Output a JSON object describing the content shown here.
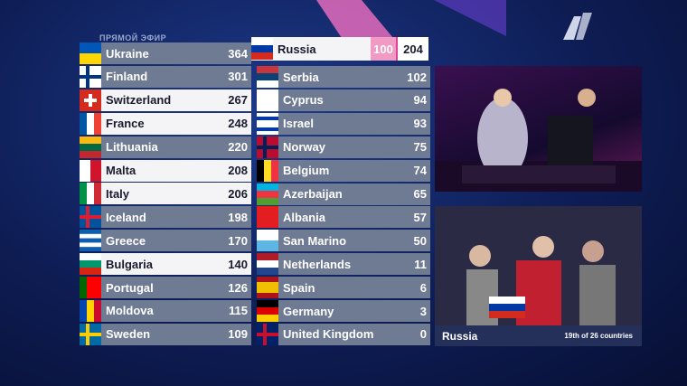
{
  "header": {
    "live_label": "ПРЯМОЙ ЭФИР"
  },
  "voter": {
    "country": "Russia",
    "points_given": 100,
    "total": 204
  },
  "scoreboard": {
    "left": [
      {
        "country": "Ukraine",
        "points": 364,
        "highlighted": false
      },
      {
        "country": "Finland",
        "points": 301,
        "highlighted": false
      },
      {
        "country": "Switzerland",
        "points": 267,
        "highlighted": true
      },
      {
        "country": "France",
        "points": 248,
        "highlighted": true
      },
      {
        "country": "Lithuania",
        "points": 220,
        "highlighted": false
      },
      {
        "country": "Malta",
        "points": 208,
        "highlighted": true
      },
      {
        "country": "Italy",
        "points": 206,
        "highlighted": true
      },
      {
        "country": "Iceland",
        "points": 198,
        "highlighted": false
      },
      {
        "country": "Greece",
        "points": 170,
        "highlighted": false
      },
      {
        "country": "Bulgaria",
        "points": 140,
        "highlighted": true
      },
      {
        "country": "Portugal",
        "points": 126,
        "highlighted": false
      },
      {
        "country": "Moldova",
        "points": 115,
        "highlighted": false
      },
      {
        "country": "Sweden",
        "points": 109,
        "highlighted": false
      }
    ],
    "right": [
      {
        "country": "Serbia",
        "points": 102,
        "highlighted": false
      },
      {
        "country": "Cyprus",
        "points": 94,
        "highlighted": false
      },
      {
        "country": "Israel",
        "points": 93,
        "highlighted": false
      },
      {
        "country": "Norway",
        "points": 75,
        "highlighted": false
      },
      {
        "country": "Belgium",
        "points": 74,
        "highlighted": false
      },
      {
        "country": "Azerbaijan",
        "points": 65,
        "highlighted": false
      },
      {
        "country": "Albania",
        "points": 57,
        "highlighted": false
      },
      {
        "country": "San Marino",
        "points": 50,
        "highlighted": false
      },
      {
        "country": "Netherlands",
        "points": 11,
        "highlighted": false
      },
      {
        "country": "Spain",
        "points": 6,
        "highlighted": false
      },
      {
        "country": "Germany",
        "points": 3,
        "highlighted": false
      },
      {
        "country": "United Kingdom",
        "points": 0,
        "highlighted": false
      }
    ]
  },
  "video": {
    "caption": "Russia",
    "progress": "19th of 26 countries"
  }
}
